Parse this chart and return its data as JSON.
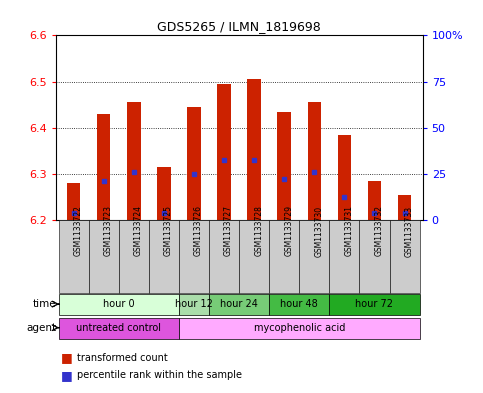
{
  "title": "GDS5265 / ILMN_1819698",
  "samples": [
    "GSM1133722",
    "GSM1133723",
    "GSM1133724",
    "GSM1133725",
    "GSM1133726",
    "GSM1133727",
    "GSM1133728",
    "GSM1133729",
    "GSM1133730",
    "GSM1133731",
    "GSM1133732",
    "GSM1133733"
  ],
  "bar_tops": [
    6.28,
    6.43,
    6.455,
    6.315,
    6.445,
    6.495,
    6.505,
    6.435,
    6.455,
    6.385,
    6.285,
    6.255
  ],
  "blue_values": [
    6.215,
    6.285,
    6.305,
    6.215,
    6.3,
    6.33,
    6.33,
    6.29,
    6.305,
    6.25,
    6.215,
    6.215
  ],
  "bar_bottom": 6.2,
  "ylim_left": [
    6.2,
    6.6
  ],
  "ylim_right": [
    0,
    100
  ],
  "bar_color": "#cc2200",
  "blue_color": "#3333cc",
  "bg_color": "#ffffff",
  "time_groups": [
    {
      "label": "hour 0",
      "start": 0,
      "end": 4,
      "color": "#ccffcc"
    },
    {
      "label": "hour 12",
      "start": 4,
      "end": 5,
      "color": "#aaeaaa"
    },
    {
      "label": "hour 24",
      "start": 5,
      "end": 7,
      "color": "#66dd66"
    },
    {
      "label": "hour 48",
      "start": 7,
      "end": 9,
      "color": "#33bb33"
    },
    {
      "label": "hour 72",
      "start": 9,
      "end": 12,
      "color": "#22aa22"
    }
  ],
  "agent_groups": [
    {
      "label": "untreated control",
      "start": 0,
      "end": 4,
      "color": "#ee66ee"
    },
    {
      "label": "mycophenolic acid",
      "start": 4,
      "end": 12,
      "color": "#ffaaff"
    }
  ],
  "bar_width": 0.45,
  "legend_red": "transformed count",
  "legend_blue": "percentile rank within the sample",
  "label_time": "time",
  "label_agent": "agent",
  "sample_bg_color": "#cccccc",
  "right_ytick_labels": [
    "0",
    "25",
    "50",
    "75",
    "100%"
  ]
}
